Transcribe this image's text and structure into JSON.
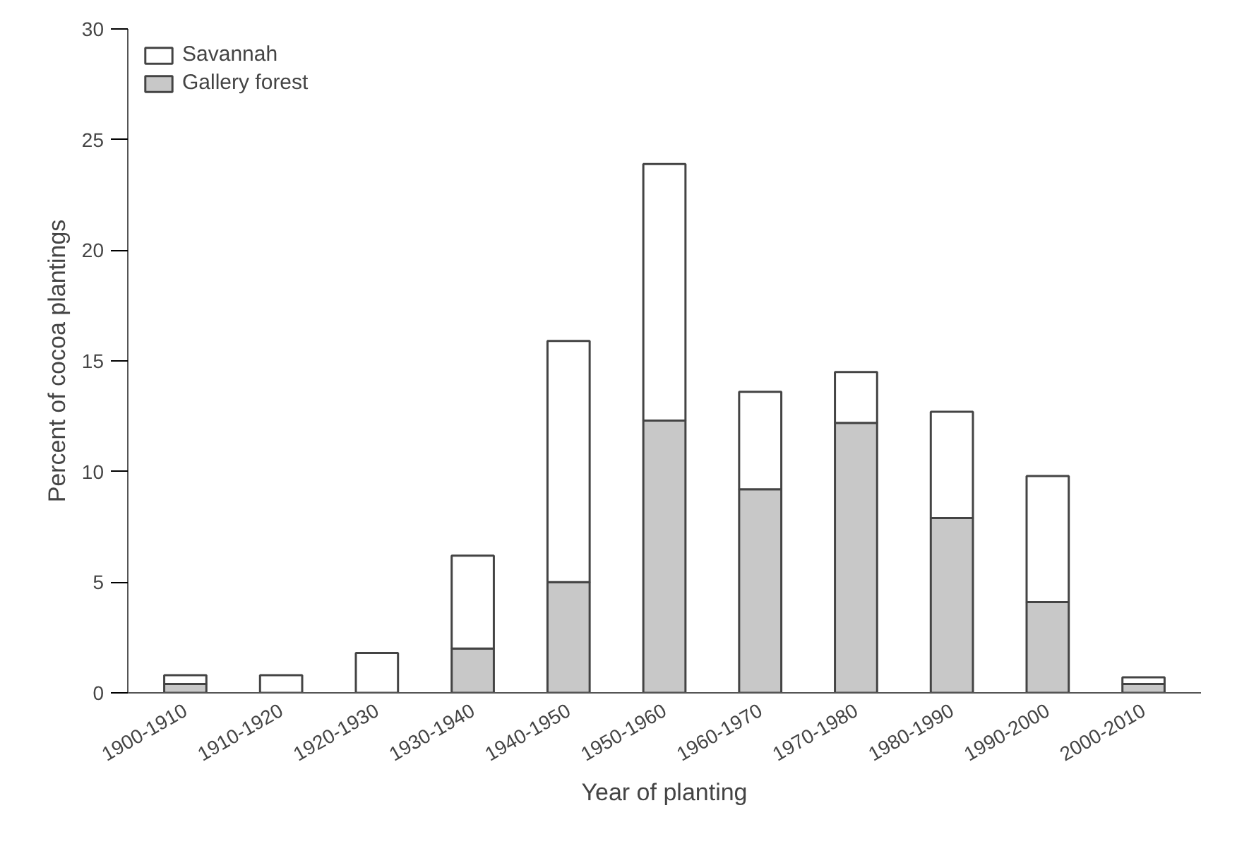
{
  "chart_data": {
    "type": "bar",
    "stacked": true,
    "xlabel": "Year of planting",
    "ylabel": "Percent of cocoa plantings",
    "categories": [
      "1900-1910",
      "1910-1920",
      "1920-1930",
      "1930-1940",
      "1940-1950",
      "1950-1960",
      "1960-1970",
      "1970-1980",
      "1980-1990",
      "1990-2000",
      "2000-2010"
    ],
    "series": [
      {
        "name": "Gallery forest",
        "color": "#c8c8c8",
        "values": [
          0.4,
          0,
          0,
          2.0,
          5.0,
          12.3,
          9.2,
          12.2,
          7.9,
          4.1,
          0.4
        ]
      },
      {
        "name": "Savannah",
        "color": "#ffffff",
        "values": [
          0.4,
          0.8,
          1.8,
          4.2,
          10.9,
          11.6,
          4.4,
          2.3,
          4.8,
          5.7,
          0.3
        ]
      }
    ],
    "ylim": [
      0,
      30
    ],
    "yticks": [
      0,
      5,
      10,
      15,
      20,
      25,
      30
    ],
    "grid": false,
    "legend": "top left"
  }
}
